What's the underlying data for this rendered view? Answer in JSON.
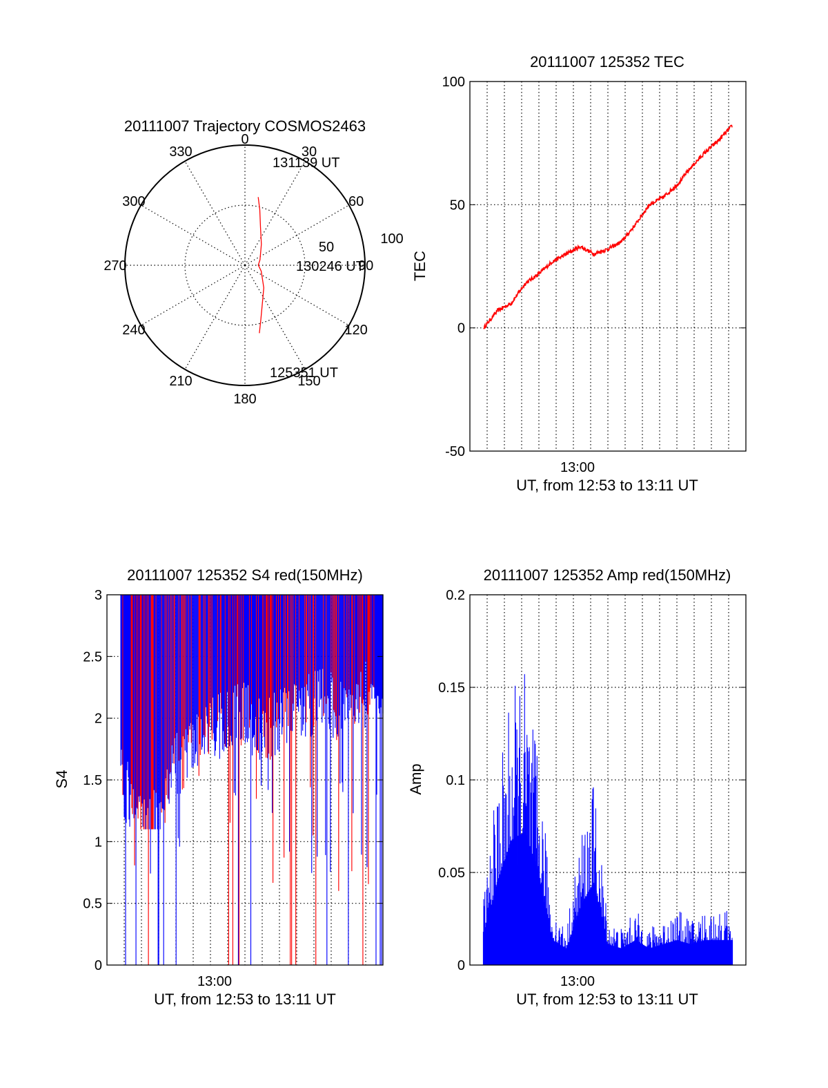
{
  "chart_data": [
    {
      "type": "polar",
      "title": "20111007 Trajectory COSMOS2463",
      "angle_labels": [
        "0",
        "30",
        "60",
        "90",
        "120",
        "150",
        "180",
        "210",
        "240",
        "270",
        "300",
        "330"
      ],
      "radial_labels": [
        "50",
        "100"
      ],
      "start_label": "131139 UT",
      "mid_label": "130246 UT",
      "end_label": "125351 UT",
      "trajectory_color": "#ff0000",
      "trajectory": [
        {
          "az": 11,
          "el": 38
        },
        {
          "az": 15,
          "el": 47
        },
        {
          "az": 22,
          "el": 59
        },
        {
          "az": 38,
          "el": 70
        },
        {
          "az": 70,
          "el": 78
        },
        {
          "az": 89,
          "el": 80
        },
        {
          "az": 110,
          "el": 77
        },
        {
          "az": 140,
          "el": 68
        },
        {
          "az": 157,
          "el": 57
        },
        {
          "az": 164,
          "el": 47
        },
        {
          "az": 168,
          "el": 38
        }
      ]
    },
    {
      "type": "line",
      "title": "20111007 125352 TEC",
      "ylabel": "TEC",
      "xlabel": "UT, from 12:53 to 13:11 UT",
      "xtick_label": "13:00",
      "xlim": [
        "12:52",
        "13:12"
      ],
      "ylim": [
        -50,
        100
      ],
      "yticks": [
        "-50",
        "0",
        "50",
        "100"
      ],
      "series_color": "#ff0000",
      "x": [
        "12:53",
        "12:54",
        "12:55",
        "12:56",
        "12:57",
        "12:58",
        "12:59",
        "13:00",
        "13:01",
        "13:02",
        "13:03",
        "13:04",
        "13:05",
        "13:06",
        "13:07",
        "13:08",
        "13:09",
        "13:10",
        "13:11"
      ],
      "values": [
        0,
        7,
        10,
        18,
        22,
        27,
        30,
        33,
        30,
        32,
        35,
        42,
        50,
        53,
        58,
        65,
        71,
        76,
        82
      ]
    },
    {
      "type": "bar",
      "title": "20111007 125352 S4 red(150MHz)",
      "ylabel": "S4",
      "xlabel": "UT, from 12:53 to 13:11 UT",
      "xtick_label": "13:00",
      "xlim": [
        "12:52",
        "13:12"
      ],
      "ylim": [
        0,
        3
      ],
      "yticks": [
        "0",
        "0.5",
        "1",
        "1.5",
        "2",
        "2.5",
        "3"
      ],
      "colors": [
        "#ff0000",
        "#0000ff"
      ],
      "s4_lower_envelope": [
        1.8,
        1.5,
        1.3,
        1.6,
        1.9,
        2.0,
        2.1,
        2.2,
        2.3,
        2.3,
        2.2,
        2.2,
        2.3,
        2.3,
        2.4,
        2.4,
        2.3,
        2.4,
        2.5,
        2.4
      ]
    },
    {
      "type": "bar",
      "title": "20111007 125352 Amp red(150MHz)",
      "ylabel": "Amp",
      "xlabel": "UT, from 12:53 to 13:11 UT",
      "xtick_label": "13:00",
      "xlim": [
        "12:52",
        "13:12"
      ],
      "ylim": [
        0,
        0.2
      ],
      "yticks": [
        "0",
        "0.05",
        "0.1",
        "0.15",
        "0.2"
      ],
      "series_color": "#0000ff",
      "x": [
        "12:53",
        "12:54",
        "12:55",
        "12:56",
        "12:57",
        "12:58",
        "12:59",
        "13:00",
        "13:01",
        "13:02",
        "13:03",
        "13:04",
        "13:05",
        "13:06",
        "13:07",
        "13:08",
        "13:09",
        "13:10",
        "13:11"
      ],
      "values": [
        0.04,
        0.1,
        0.15,
        0.16,
        0.11,
        0.03,
        0.02,
        0.07,
        0.1,
        0.025,
        0.02,
        0.03,
        0.02,
        0.025,
        0.03,
        0.025,
        0.03,
        0.03,
        0.03
      ]
    }
  ]
}
